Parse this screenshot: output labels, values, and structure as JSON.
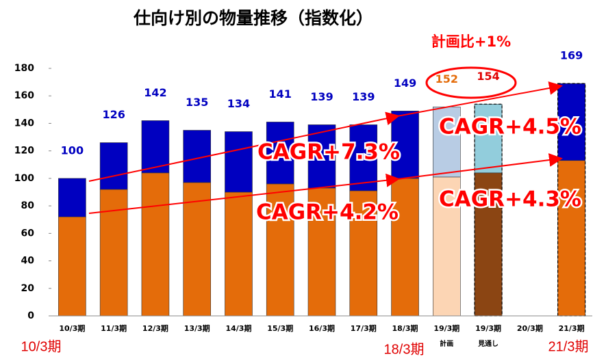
{
  "chart_data": {
    "type": "stacked_bar",
    "title": "仕向け別の物量推移（指数化）",
    "categories": [
      "10/3期",
      "11/3期",
      "12/3期",
      "13/3期",
      "14/3期",
      "15/3期",
      "16/3期",
      "17/3期",
      "18/3期",
      "19/3期",
      "19/3期",
      "20/3期",
      "21/3期"
    ],
    "category_notes": [
      null,
      null,
      null,
      null,
      null,
      null,
      null,
      null,
      null,
      "計画",
      "見通し",
      null,
      null
    ],
    "series": [
      {
        "colors": [
          "#e46c0a",
          "#e46c0a",
          "#e46c0a",
          "#e46c0a",
          "#e46c0a",
          "#e46c0a",
          "#e46c0a",
          "#e46c0a",
          "#e46c0a",
          "#fcd5b4",
          "#8b4513",
          null,
          "#e46c0a"
        ],
        "values": [
          72,
          92,
          104,
          97,
          90,
          96,
          93,
          91,
          100,
          101,
          104,
          null,
          113
        ]
      },
      {
        "colors": [
          "#0000c0",
          "#0000c0",
          "#0000c0",
          "#0000c0",
          "#0000c0",
          "#0000c0",
          "#0000c0",
          "#0000c0",
          "#0000c0",
          "#b8cce4",
          "#92cddc",
          null,
          "#0000c0"
        ],
        "values": [
          28,
          34,
          38,
          38,
          44,
          45,
          46,
          48,
          49,
          51,
          50,
          null,
          56
        ]
      }
    ],
    "totals": [
      100,
      126,
      142,
      135,
      134,
      141,
      139,
      139,
      149,
      152,
      154,
      null,
      169
    ],
    "total_colors": [
      "#0000c0",
      "#0000c0",
      "#0000c0",
      "#0000c0",
      "#0000c0",
      "#0000c0",
      "#0000c0",
      "#0000c0",
      "#0000c0",
      "#e46c0a",
      "#e00000",
      null,
      "#0000c0"
    ],
    "outline_dashed": [
      false,
      false,
      false,
      false,
      false,
      false,
      false,
      false,
      false,
      false,
      true,
      false,
      true
    ],
    "ylim": [
      0,
      180
    ],
    "yticks": [
      0,
      20,
      40,
      60,
      80,
      100,
      120,
      140,
      160,
      180
    ],
    "grid": false,
    "annotations": [
      "計画比+1%",
      "CAGR+7.3%",
      "CAGR+4.2%",
      "CAGR+4.5%",
      "CAGR+4.3%",
      "10/3期",
      "18/3期",
      "21/3期"
    ]
  }
}
